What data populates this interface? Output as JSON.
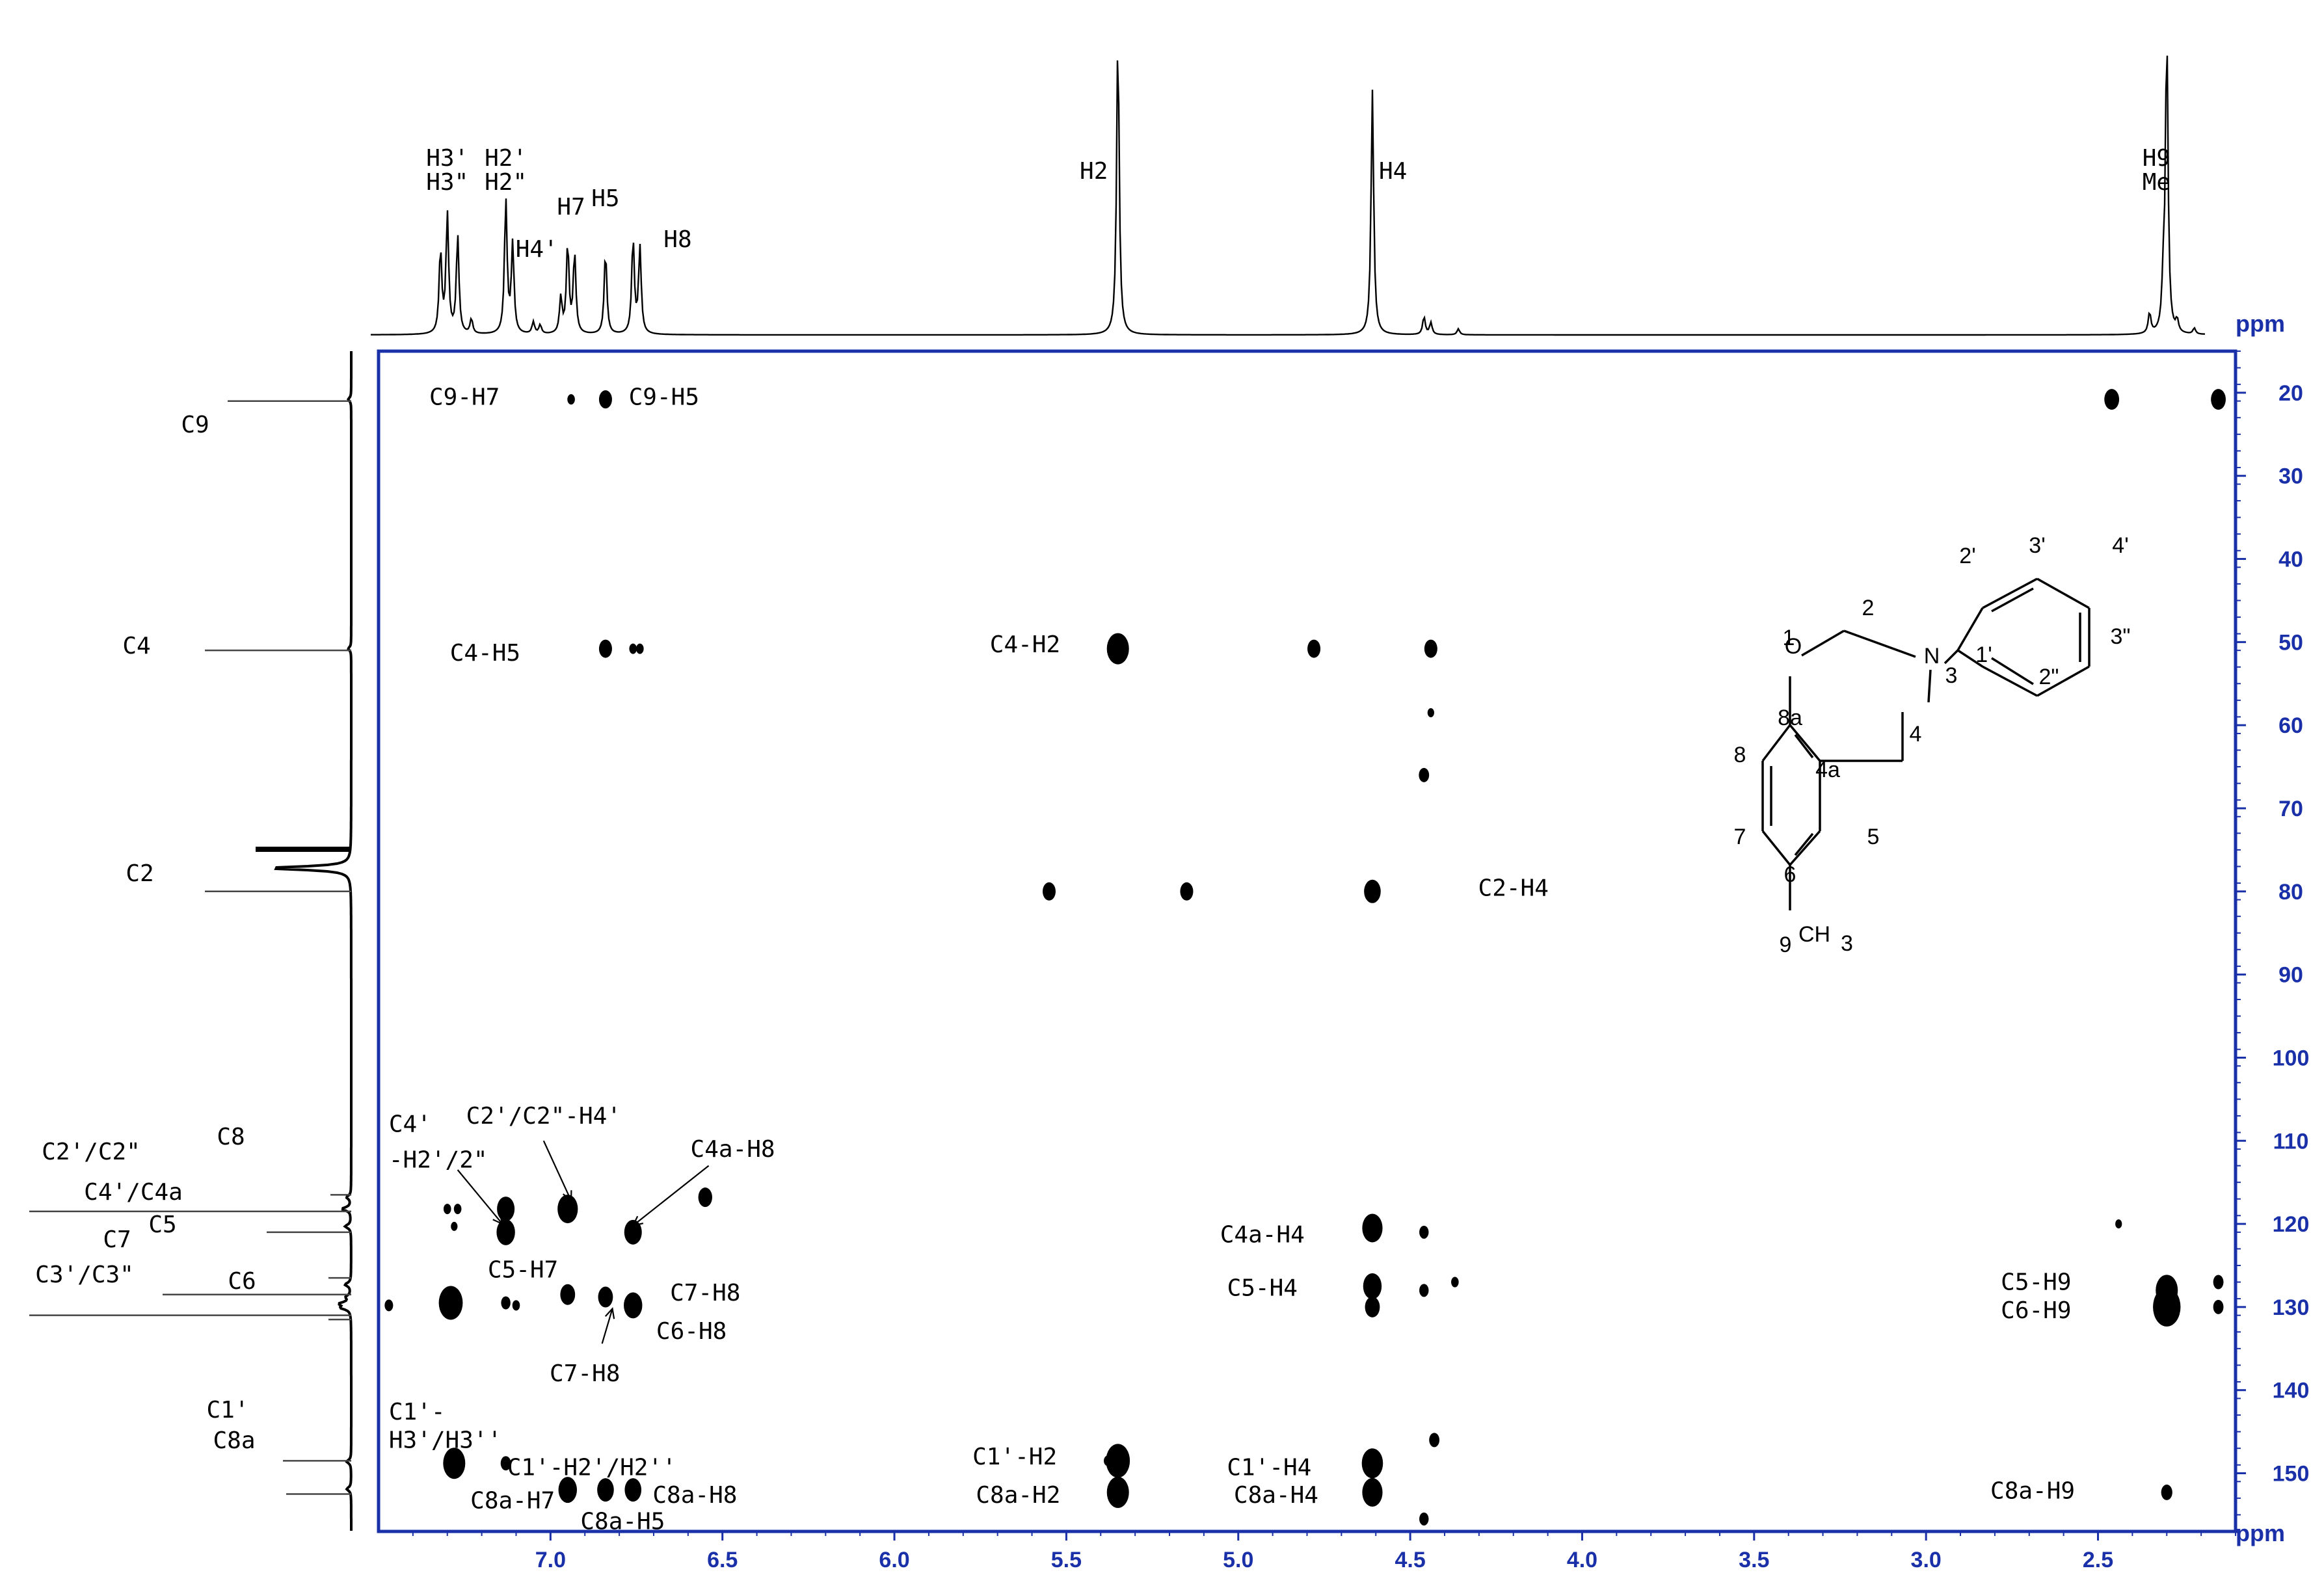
{
  "chart_data": {
    "type": "heatmap",
    "subtype": "2D HMBC NMR spectrum",
    "x_axis": {
      "unit": "ppm",
      "range": [
        7.5,
        2.1
      ],
      "reversed": true,
      "ticks": [
        "7.0",
        "6.5",
        "6.0",
        "5.5",
        "5.0",
        "4.5",
        "4.0",
        "3.5",
        "3.0",
        "2.5"
      ]
    },
    "y_axis": {
      "unit": "ppm",
      "range": [
        15,
        157
      ],
      "reversed": true,
      "position": "right",
      "ticks": [
        "20",
        "30",
        "40",
        "50",
        "60",
        "70",
        "80",
        "90",
        "100",
        "110",
        "120",
        "130",
        "140",
        "150"
      ]
    },
    "proton_labels": [
      {
        "text": "H3'",
        "ppm": 7.3,
        "line": 0
      },
      {
        "text": "H3\"",
        "ppm": 7.3,
        "line": 1
      },
      {
        "text": "H2'",
        "ppm": 7.13,
        "line": 0
      },
      {
        "text": "H2\"",
        "ppm": 7.13,
        "line": 1
      },
      {
        "text": "H4'",
        "ppm": 7.04,
        "line": 0
      },
      {
        "text": "H7",
        "ppm": 6.94,
        "line": 0
      },
      {
        "text": "H5",
        "ppm": 6.84,
        "line": 0
      },
      {
        "text": "H8",
        "ppm": 6.63,
        "line": 0
      },
      {
        "text": "H2",
        "ppm": 5.42,
        "line": 0
      },
      {
        "text": "H4",
        "ppm": 4.55,
        "line": 0
      },
      {
        "text": "H9",
        "ppm": 2.33,
        "line": 0
      },
      {
        "text": "Me",
        "ppm": 2.33,
        "line": 1
      }
    ],
    "proton_peaks": [
      {
        "ppm": 7.32,
        "h": 0.28
      },
      {
        "ppm": 7.3,
        "h": 0.4
      },
      {
        "ppm": 7.27,
        "h": 0.33
      },
      {
        "ppm": 7.23,
        "h": 0.05
      },
      {
        "ppm": 7.13,
        "h": 0.45
      },
      {
        "ppm": 7.11,
        "h": 0.3
      },
      {
        "ppm": 7.05,
        "h": 0.04
      },
      {
        "ppm": 7.03,
        "h": 0.03
      },
      {
        "ppm": 6.97,
        "h": 0.12
      },
      {
        "ppm": 6.95,
        "h": 0.3
      },
      {
        "ppm": 6.93,
        "h": 0.27
      },
      {
        "ppm": 6.84,
        "h": 0.28
      },
      {
        "ppm": 6.76,
        "h": 0.32
      },
      {
        "ppm": 6.74,
        "h": 0.29
      },
      {
        "ppm": 5.35,
        "h": 1.0
      },
      {
        "ppm": 4.61,
        "h": 0.82
      },
      {
        "ppm": 4.46,
        "h": 0.06
      },
      {
        "ppm": 4.44,
        "h": 0.04
      },
      {
        "ppm": 4.36,
        "h": 0.02
      },
      {
        "ppm": 2.35,
        "h": 0.07
      },
      {
        "ppm": 2.31,
        "h": 0.15
      },
      {
        "ppm": 2.3,
        "h": 1.0
      },
      {
        "ppm": 2.27,
        "h": 0.04
      },
      {
        "ppm": 2.22,
        "h": 0.02
      },
      {
        "ppm": 2.15,
        "h": 0.03
      }
    ],
    "carbon_labels": [
      {
        "text": "C9",
        "ppm": 21
      },
      {
        "text": "C4",
        "ppm": 51
      },
      {
        "text": "C2",
        "ppm": 80
      },
      {
        "text": "C8",
        "ppm": 116.5
      },
      {
        "text": "C2'/C2\"",
        "ppm": 118.5
      },
      {
        "text": "C4'/C4a",
        "ppm": 121
      },
      {
        "text": "C5",
        "ppm": 126.5
      },
      {
        "text": "C7",
        "ppm": 128.5
      },
      {
        "text": "C3'/C3\"",
        "ppm": 131
      },
      {
        "text": "C6",
        "ppm": 131.5
      },
      {
        "text": "C1'",
        "ppm": 148.5
      },
      {
        "text": "C8a",
        "ppm": 152.5
      }
    ],
    "carbon_peaks": [
      {
        "ppm": 20.8,
        "h": 0.02
      },
      {
        "ppm": 50.8,
        "h": 0.02
      },
      {
        "ppm": 77.2,
        "h": 0.55
      },
      {
        "ppm": 116.8,
        "h": 0.03
      },
      {
        "ppm": 118.2,
        "h": 0.06
      },
      {
        "ppm": 120.3,
        "h": 0.04
      },
      {
        "ppm": 127.3,
        "h": 0.04
      },
      {
        "ppm": 128.8,
        "h": 0.03
      },
      {
        "ppm": 129.6,
        "h": 0.07
      },
      {
        "ppm": 130.1,
        "h": 0.06
      },
      {
        "ppm": 148.6,
        "h": 0.03
      },
      {
        "ppm": 151.9,
        "h": 0.03
      }
    ],
    "cross_peaks": [
      {
        "x": 6.94,
        "y": 20.8,
        "s": 0.4
      },
      {
        "x": 6.84,
        "y": 20.8,
        "s": 1.0
      },
      {
        "x": 2.46,
        "y": 20.8,
        "s": 1.2
      },
      {
        "x": 2.15,
        "y": 20.8,
        "s": 1.2
      },
      {
        "x": 6.84,
        "y": 50.8,
        "s": 1.0
      },
      {
        "x": 6.76,
        "y": 50.8,
        "s": 0.4
      },
      {
        "x": 6.74,
        "y": 50.8,
        "s": 0.4
      },
      {
        "x": 5.35,
        "y": 50.8,
        "s": 2.0
      },
      {
        "x": 4.78,
        "y": 50.8,
        "s": 1.0
      },
      {
        "x": 4.44,
        "y": 50.8,
        "s": 1.0
      },
      {
        "x": 4.44,
        "y": 58.5,
        "s": 0.3
      },
      {
        "x": 4.46,
        "y": 66.0,
        "s": 0.7
      },
      {
        "x": 5.55,
        "y": 80.0,
        "s": 1.0
      },
      {
        "x": 5.15,
        "y": 80.0,
        "s": 1.0
      },
      {
        "x": 4.61,
        "y": 80.0,
        "s": 1.4
      },
      {
        "x": 7.3,
        "y": 118.2,
        "s": 0.4
      },
      {
        "x": 7.27,
        "y": 118.2,
        "s": 0.4
      },
      {
        "x": 7.13,
        "y": 118.2,
        "s": 1.5
      },
      {
        "x": 6.95,
        "y": 118.2,
        "s": 1.8
      },
      {
        "x": 6.55,
        "y": 116.8,
        "s": 1.1
      },
      {
        "x": 7.28,
        "y": 120.3,
        "s": 0.3
      },
      {
        "x": 7.13,
        "y": 121.0,
        "s": 1.6
      },
      {
        "x": 6.76,
        "y": 121.0,
        "s": 1.5
      },
      {
        "x": 4.61,
        "y": 120.5,
        "s": 1.8
      },
      {
        "x": 4.46,
        "y": 121.0,
        "s": 0.6
      },
      {
        "x": 2.44,
        "y": 120.0,
        "s": 0.3
      },
      {
        "x": 7.29,
        "y": 129.5,
        "s": 2.2
      },
      {
        "x": 7.13,
        "y": 129.5,
        "s": 0.6
      },
      {
        "x": 7.1,
        "y": 129.8,
        "s": 0.4
      },
      {
        "x": 6.95,
        "y": 128.5,
        "s": 1.2
      },
      {
        "x": 6.84,
        "y": 128.8,
        "s": 1.2
      },
      {
        "x": 6.76,
        "y": 129.8,
        "s": 1.6
      },
      {
        "x": 4.61,
        "y": 127.5,
        "s": 1.6
      },
      {
        "x": 4.61,
        "y": 130.0,
        "s": 1.2
      },
      {
        "x": 4.46,
        "y": 128.0,
        "s": 0.6
      },
      {
        "x": 4.37,
        "y": 127.0,
        "s": 0.4
      },
      {
        "x": 2.3,
        "y": 128.0,
        "s": 2.0
      },
      {
        "x": 2.3,
        "y": 130.0,
        "s": 2.6
      },
      {
        "x": 2.15,
        "y": 127.0,
        "s": 0.7
      },
      {
        "x": 2.15,
        "y": 130.0,
        "s": 0.7
      },
      {
        "x": 7.47,
        "y": 129.8,
        "s": 0.5
      },
      {
        "x": 7.28,
        "y": 148.8,
        "s": 2.0
      },
      {
        "x": 7.13,
        "y": 148.8,
        "s": 0.7
      },
      {
        "x": 5.38,
        "y": 148.5,
        "s": 0.4
      },
      {
        "x": 5.35,
        "y": 148.5,
        "s": 2.2
      },
      {
        "x": 4.61,
        "y": 148.8,
        "s": 1.9
      },
      {
        "x": 4.43,
        "y": 146.0,
        "s": 0.7
      },
      {
        "x": 6.95,
        "y": 152.0,
        "s": 1.6
      },
      {
        "x": 6.84,
        "y": 152.0,
        "s": 1.4
      },
      {
        "x": 6.76,
        "y": 152.0,
        "s": 1.4
      },
      {
        "x": 5.35,
        "y": 152.3,
        "s": 2.0
      },
      {
        "x": 4.61,
        "y": 152.3,
        "s": 1.8
      },
      {
        "x": 4.46,
        "y": 155.5,
        "s": 0.6
      },
      {
        "x": 2.3,
        "y": 152.3,
        "s": 0.8
      }
    ],
    "annotations": [
      {
        "text": "C9-H7",
        "x": 7.25,
        "y": 20.5,
        "anchor": "middle"
      },
      {
        "text": "C9-H5",
        "x": 6.67,
        "y": 20.5,
        "anchor": "middle"
      },
      {
        "text": "C4-H5",
        "x": 7.19,
        "y": 51.3,
        "anchor": "middle"
      },
      {
        "text": "C4-H2",
        "x": 5.62,
        "y": 50.3,
        "anchor": "middle"
      },
      {
        "text": "C2-H4",
        "x": 4.2,
        "y": 79.6,
        "anchor": "middle"
      },
      {
        "text": "C4'",
        "x": 7.47,
        "y": 108.0,
        "anchor": "start"
      },
      {
        "text": "-H2'/2\"",
        "x": 7.47,
        "y": 112.3,
        "anchor": "start"
      },
      {
        "text": "C2'/C2\"-H4'",
        "x": 7.02,
        "y": 107.0,
        "anchor": "middle"
      },
      {
        "text": "C4a-H8",
        "x": 6.47,
        "y": 111.0,
        "anchor": "middle"
      },
      {
        "text": "C4a-H4",
        "x": 4.93,
        "y": 121.3,
        "anchor": "middle"
      },
      {
        "text": "C5-H7",
        "x": 7.08,
        "y": 125.5,
        "anchor": "middle"
      },
      {
        "text": "C7-H8",
        "x": 6.55,
        "y": 128.3,
        "anchor": "middle"
      },
      {
        "text": "C5-H4",
        "x": 4.93,
        "y": 127.7,
        "anchor": "middle"
      },
      {
        "text": "C5-H9",
        "x": 2.68,
        "y": 127.0,
        "anchor": "middle"
      },
      {
        "text": "C6-H8",
        "x": 6.59,
        "y": 132.9,
        "anchor": "middle"
      },
      {
        "text": "C6-H9",
        "x": 2.68,
        "y": 130.4,
        "anchor": "middle"
      },
      {
        "text": "C7-H8",
        "x": 6.9,
        "y": 138.0,
        "anchor": "middle"
      },
      {
        "text": "C1'-",
        "x": 7.47,
        "y": 142.6,
        "anchor": "start"
      },
      {
        "text": "H3'/H3''",
        "x": 7.47,
        "y": 146.0,
        "anchor": "start"
      },
      {
        "text": "C1'-H2'/H2''",
        "x": 6.88,
        "y": 149.3,
        "anchor": "middle"
      },
      {
        "text": "C1'-H2",
        "x": 5.65,
        "y": 148.0,
        "anchor": "middle"
      },
      {
        "text": "C1'-H4",
        "x": 4.91,
        "y": 149.3,
        "anchor": "middle"
      },
      {
        "text": "C8a-H7",
        "x": 7.11,
        "y": 153.3,
        "anchor": "middle"
      },
      {
        "text": "C8a-H8",
        "x": 6.58,
        "y": 152.6,
        "anchor": "middle"
      },
      {
        "text": "C8a-H5",
        "x": 6.79,
        "y": 155.8,
        "anchor": "middle"
      },
      {
        "text": "C8a-H2",
        "x": 5.64,
        "y": 152.6,
        "anchor": "middle"
      },
      {
        "text": "C8a-H4",
        "x": 4.89,
        "y": 152.6,
        "anchor": "middle"
      },
      {
        "text": "C8a-H9",
        "x": 2.69,
        "y": 152.1,
        "anchor": "middle"
      }
    ],
    "arrows": [
      {
        "from": [
          7.02,
          110.0
        ],
        "to": [
          6.94,
          117.2
        ]
      },
      {
        "from": [
          7.27,
          113.5
        ],
        "to": [
          7.14,
          120.0
        ]
      },
      {
        "from": [
          6.54,
          113.0
        ],
        "to": [
          6.76,
          120.2
        ]
      },
      {
        "from": [
          6.85,
          134.4
        ],
        "to": [
          6.82,
          130.2
        ]
      }
    ],
    "structure": {
      "atom_labels": [
        "O",
        "N",
        "3",
        "1",
        "2",
        "3'",
        "4'",
        "3\"",
        "2\"",
        "1'",
        "2'",
        "8a",
        "4a",
        "4",
        "8",
        "7",
        "6",
        "5",
        "9"
      ],
      "methyl": {
        "main": "CH",
        "sub": "3"
      }
    }
  }
}
